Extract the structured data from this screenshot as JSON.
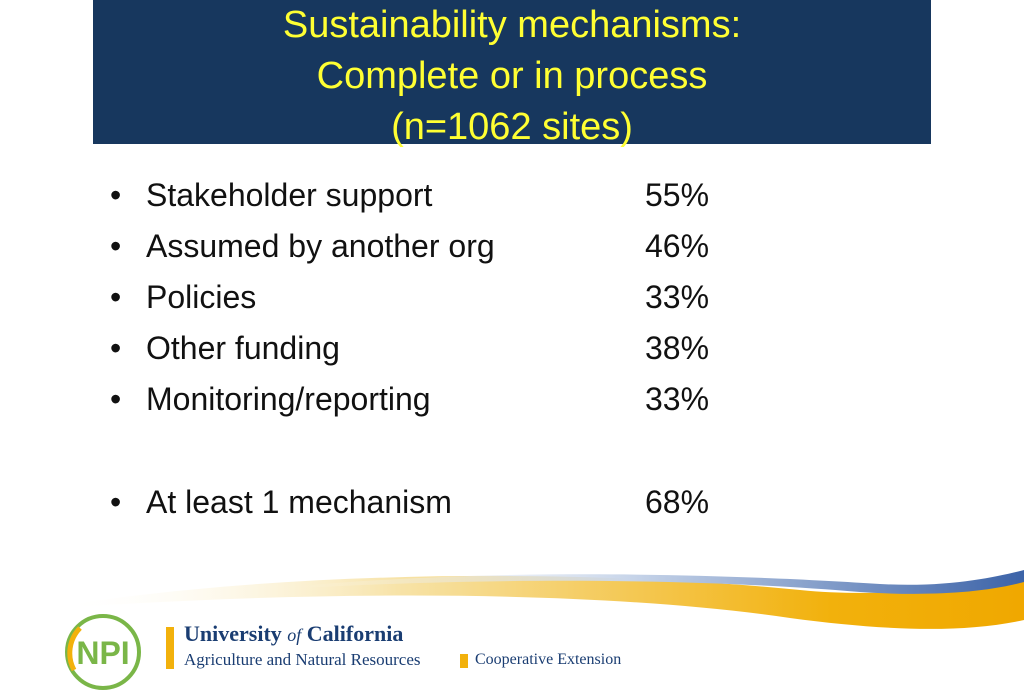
{
  "title": {
    "line1": "Sustainability mechanisms:",
    "line2": "Complete or in process",
    "line3": "(n=1062 sites)"
  },
  "items": [
    {
      "label": "Stakeholder support",
      "value": "55%"
    },
    {
      "label": "Assumed by another org",
      "value": "46%"
    },
    {
      "label": "Policies",
      "value": "33%"
    },
    {
      "label": "Other funding",
      "value": "38%"
    },
    {
      "label": "Monitoring/reporting",
      "value": "33%"
    }
  ],
  "summary": {
    "label": "At least 1 mechanism",
    "value": "68%"
  },
  "bullet_glyph": "•",
  "footer": {
    "logo_text": "NPI",
    "uc_prefix": "University ",
    "uc_of": "of",
    "uc_suffix": " California",
    "uc_subtitle": "Agriculture and Natural Resources",
    "coop": "Cooperative Extension"
  },
  "colors": {
    "title_bg": "#17375e",
    "title_text": "#ffff33",
    "accent_gold": "#f2b10c",
    "uc_blue": "#1a3d72",
    "logo_green": "#7ab648"
  }
}
